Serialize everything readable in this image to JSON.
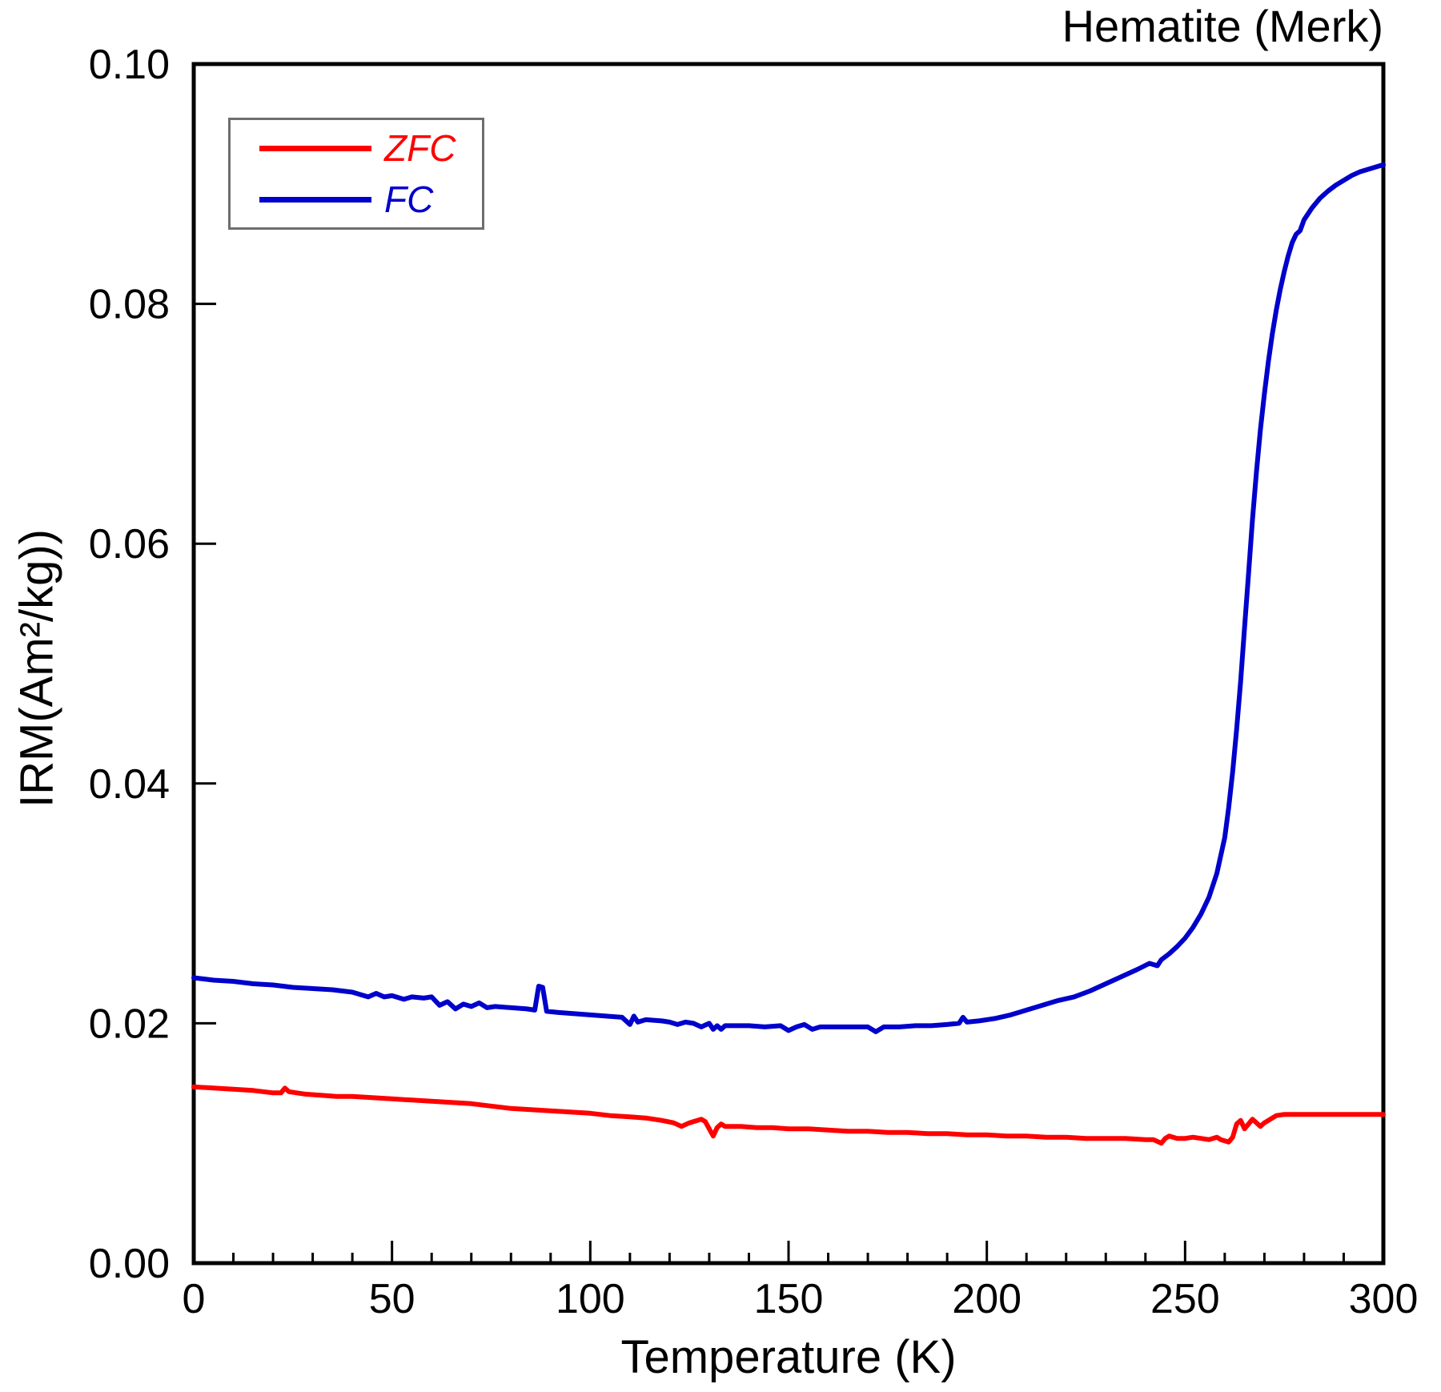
{
  "title": "Hematite (Merk)",
  "legend": {
    "items": [
      {
        "label": "ZFC",
        "color": "#ff0000"
      },
      {
        "label": "FC",
        "color": "#0000cc"
      }
    ]
  },
  "chart_data": {
    "type": "line",
    "title": "Hematite (Merk)",
    "xlabel": "Temperature (K)",
    "ylabel": "IRM(Am²/kg))",
    "xlim": [
      0,
      300
    ],
    "ylim": [
      0,
      0.1
    ],
    "grid": false,
    "legend_position": "upper-left",
    "x_major_ticks": [
      0,
      50,
      100,
      150,
      200,
      250,
      300
    ],
    "x_tick_labels": [
      "0",
      "50",
      "100",
      "150",
      "200",
      "250",
      "300"
    ],
    "x_minor_step": 10,
    "y_ticks": [
      {
        "value": 0.0,
        "label": "0.00"
      },
      {
        "value": 0.02,
        "label": "0.02"
      },
      {
        "value": 0.04,
        "label": "0.04"
      },
      {
        "value": 0.06,
        "label": "0.06"
      },
      {
        "value": 0.08,
        "label": "0.08"
      },
      {
        "value": 0.1,
        "label": "0.10"
      }
    ],
    "series": [
      {
        "name": "ZFC",
        "color": "#ff0000",
        "points": [
          [
            0,
            0.0147
          ],
          [
            5,
            0.0146
          ],
          [
            10,
            0.0145
          ],
          [
            15,
            0.0144
          ],
          [
            20,
            0.0142
          ],
          [
            22,
            0.0142
          ],
          [
            23,
            0.0146
          ],
          [
            24,
            0.0143
          ],
          [
            28,
            0.0141
          ],
          [
            32,
            0.014
          ],
          [
            36,
            0.0139
          ],
          [
            40,
            0.0139
          ],
          [
            45,
            0.0138
          ],
          [
            50,
            0.0137
          ],
          [
            55,
            0.0136
          ],
          [
            60,
            0.0135
          ],
          [
            65,
            0.0134
          ],
          [
            70,
            0.0133
          ],
          [
            75,
            0.0131
          ],
          [
            80,
            0.0129
          ],
          [
            85,
            0.0128
          ],
          [
            90,
            0.0127
          ],
          [
            95,
            0.0126
          ],
          [
            100,
            0.0125
          ],
          [
            105,
            0.0123
          ],
          [
            110,
            0.0122
          ],
          [
            114,
            0.0121
          ],
          [
            118,
            0.0119
          ],
          [
            121,
            0.0117
          ],
          [
            123,
            0.0114
          ],
          [
            125,
            0.0117
          ],
          [
            127,
            0.0119
          ],
          [
            128,
            0.012
          ],
          [
            129,
            0.0118
          ],
          [
            130,
            0.0112
          ],
          [
            131,
            0.0106
          ],
          [
            132,
            0.0113
          ],
          [
            133,
            0.0116
          ],
          [
            134,
            0.0114
          ],
          [
            138,
            0.0114
          ],
          [
            142,
            0.0113
          ],
          [
            146,
            0.0113
          ],
          [
            150,
            0.0112
          ],
          [
            155,
            0.0112
          ],
          [
            160,
            0.0111
          ],
          [
            165,
            0.011
          ],
          [
            170,
            0.011
          ],
          [
            175,
            0.0109
          ],
          [
            180,
            0.0109
          ],
          [
            185,
            0.0108
          ],
          [
            190,
            0.0108
          ],
          [
            195,
            0.0107
          ],
          [
            200,
            0.0107
          ],
          [
            205,
            0.0106
          ],
          [
            210,
            0.0106
          ],
          [
            215,
            0.0105
          ],
          [
            220,
            0.0105
          ],
          [
            225,
            0.0104
          ],
          [
            230,
            0.0104
          ],
          [
            235,
            0.0104
          ],
          [
            240,
            0.0103
          ],
          [
            242,
            0.0103
          ],
          [
            244,
            0.01
          ],
          [
            245,
            0.0104
          ],
          [
            246,
            0.0106
          ],
          [
            248,
            0.0104
          ],
          [
            250,
            0.0104
          ],
          [
            252,
            0.0105
          ],
          [
            254,
            0.0104
          ],
          [
            256,
            0.0103
          ],
          [
            258,
            0.0105
          ],
          [
            259,
            0.0103
          ],
          [
            261,
            0.0101
          ],
          [
            262,
            0.0105
          ],
          [
            263,
            0.0116
          ],
          [
            264,
            0.0119
          ],
          [
            265,
            0.0112
          ],
          [
            266,
            0.0116
          ],
          [
            267,
            0.012
          ],
          [
            268,
            0.0117
          ],
          [
            269,
            0.0114
          ],
          [
            270,
            0.0117
          ],
          [
            271,
            0.0119
          ],
          [
            272,
            0.0121
          ],
          [
            273,
            0.0123
          ],
          [
            275,
            0.0124
          ],
          [
            278,
            0.0124
          ],
          [
            282,
            0.0124
          ],
          [
            286,
            0.0124
          ],
          [
            290,
            0.0124
          ],
          [
            295,
            0.0124
          ],
          [
            300,
            0.0124
          ]
        ]
      },
      {
        "name": "FC",
        "color": "#0000cc",
        "points": [
          [
            0,
            0.0238
          ],
          [
            5,
            0.0236
          ],
          [
            10,
            0.0235
          ],
          [
            15,
            0.0233
          ],
          [
            20,
            0.0232
          ],
          [
            25,
            0.023
          ],
          [
            30,
            0.0229
          ],
          [
            35,
            0.0228
          ],
          [
            40,
            0.0226
          ],
          [
            44,
            0.0222
          ],
          [
            46,
            0.0225
          ],
          [
            48,
            0.0222
          ],
          [
            50,
            0.0223
          ],
          [
            53,
            0.022
          ],
          [
            55,
            0.0222
          ],
          [
            58,
            0.0221
          ],
          [
            60,
            0.0222
          ],
          [
            62,
            0.0215
          ],
          [
            64,
            0.0218
          ],
          [
            66,
            0.0212
          ],
          [
            68,
            0.0216
          ],
          [
            70,
            0.0214
          ],
          [
            72,
            0.0217
          ],
          [
            74,
            0.0213
          ],
          [
            76,
            0.0214
          ],
          [
            80,
            0.0213
          ],
          [
            84,
            0.0212
          ],
          [
            86,
            0.0211
          ],
          [
            87,
            0.0231
          ],
          [
            88,
            0.023
          ],
          [
            89,
            0.021
          ],
          [
            92,
            0.0209
          ],
          [
            96,
            0.0208
          ],
          [
            100,
            0.0207
          ],
          [
            104,
            0.0206
          ],
          [
            108,
            0.0205
          ],
          [
            110,
            0.0199
          ],
          [
            111,
            0.0206
          ],
          [
            112,
            0.0201
          ],
          [
            114,
            0.0203
          ],
          [
            118,
            0.0202
          ],
          [
            120,
            0.0201
          ],
          [
            122,
            0.0199
          ],
          [
            124,
            0.0201
          ],
          [
            126,
            0.02
          ],
          [
            128,
            0.0197
          ],
          [
            130,
            0.02
          ],
          [
            131,
            0.0195
          ],
          [
            132,
            0.0198
          ],
          [
            133,
            0.0195
          ],
          [
            134,
            0.0198
          ],
          [
            136,
            0.0198
          ],
          [
            140,
            0.0198
          ],
          [
            144,
            0.0197
          ],
          [
            148,
            0.0198
          ],
          [
            150,
            0.0194
          ],
          [
            152,
            0.0197
          ],
          [
            154,
            0.0199
          ],
          [
            156,
            0.0195
          ],
          [
            158,
            0.0197
          ],
          [
            162,
            0.0197
          ],
          [
            166,
            0.0197
          ],
          [
            170,
            0.0197
          ],
          [
            172,
            0.0193
          ],
          [
            174,
            0.0197
          ],
          [
            178,
            0.0197
          ],
          [
            182,
            0.0198
          ],
          [
            186,
            0.0198
          ],
          [
            190,
            0.0199
          ],
          [
            193,
            0.02
          ],
          [
            194,
            0.0205
          ],
          [
            195,
            0.0201
          ],
          [
            198,
            0.0202
          ],
          [
            202,
            0.0204
          ],
          [
            206,
            0.0207
          ],
          [
            210,
            0.0211
          ],
          [
            214,
            0.0215
          ],
          [
            218,
            0.0219
          ],
          [
            222,
            0.0222
          ],
          [
            226,
            0.0227
          ],
          [
            230,
            0.0233
          ],
          [
            234,
            0.0239
          ],
          [
            238,
            0.0245
          ],
          [
            241,
            0.025
          ],
          [
            243,
            0.0248
          ],
          [
            244,
            0.0253
          ],
          [
            246,
            0.0258
          ],
          [
            248,
            0.0264
          ],
          [
            250,
            0.0271
          ],
          [
            252,
            0.028
          ],
          [
            254,
            0.0291
          ],
          [
            256,
            0.0305
          ],
          [
            258,
            0.0325
          ],
          [
            260,
            0.0355
          ],
          [
            261,
            0.038
          ],
          [
            262,
            0.041
          ],
          [
            263,
            0.0445
          ],
          [
            264,
            0.0485
          ],
          [
            265,
            0.053
          ],
          [
            266,
            0.0575
          ],
          [
            267,
            0.062
          ],
          [
            268,
            0.066
          ],
          [
            269,
            0.0695
          ],
          [
            270,
            0.0725
          ],
          [
            271,
            0.0752
          ],
          [
            272,
            0.0775
          ],
          [
            273,
            0.0795
          ],
          [
            274,
            0.0812
          ],
          [
            275,
            0.0827
          ],
          [
            276,
            0.084
          ],
          [
            277,
            0.0851
          ],
          [
            278,
            0.0858
          ],
          [
            279,
            0.0861
          ],
          [
            280,
            0.087
          ],
          [
            282,
            0.088
          ],
          [
            284,
            0.0888
          ],
          [
            286,
            0.0894
          ],
          [
            288,
            0.0899
          ],
          [
            290,
            0.0903
          ],
          [
            292,
            0.0907
          ],
          [
            294,
            0.091
          ],
          [
            296,
            0.0912
          ],
          [
            298,
            0.0914
          ],
          [
            300,
            0.0916
          ]
        ]
      }
    ]
  }
}
